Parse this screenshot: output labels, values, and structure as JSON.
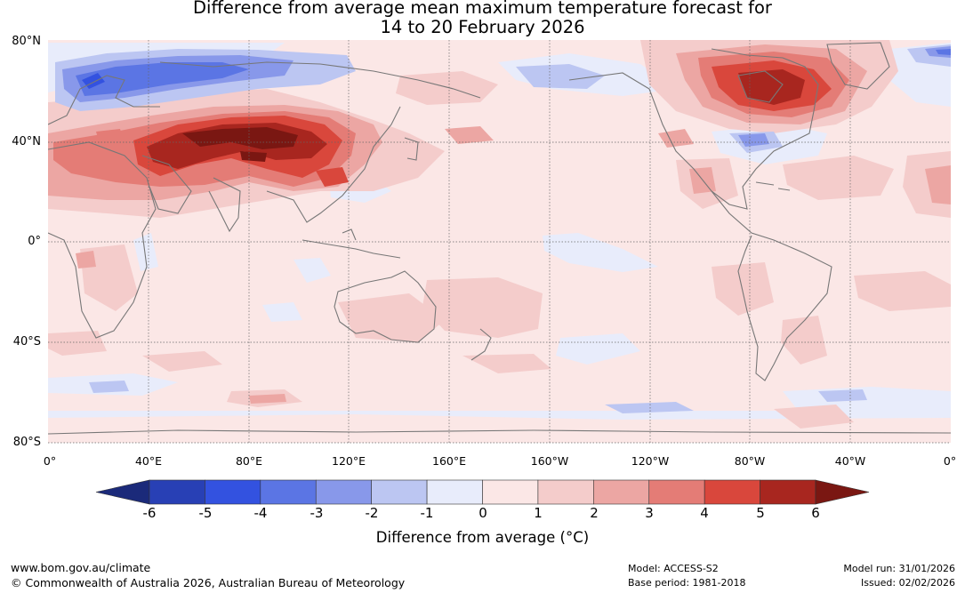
{
  "title": {
    "line1": "Difference from average mean maximum temperature forecast for",
    "line2": "14 to 20 February 2026"
  },
  "map": {
    "lat_labels": [
      "80°N",
      "40°N",
      "0°",
      "40°S",
      "80°S"
    ],
    "lon_labels": [
      "0°",
      "40°E",
      "80°E",
      "120°E",
      "160°E",
      "160°W",
      "120°W",
      "80°W",
      "40°W",
      "0°"
    ],
    "anomaly_regions": [
      {
        "region": "Central Asia / Tibetan Plateau",
        "anomaly_c": 6
      },
      {
        "region": "Middle East / Iran",
        "anomaly_c": 5
      },
      {
        "region": "Eastern Canada / Hudson Bay",
        "anomaly_c": 5
      },
      {
        "region": "Scandinavia / Western Russia",
        "anomaly_c": -4
      },
      {
        "region": "Eastern United States",
        "anomaly_c": -3
      },
      {
        "region": "Southern Ocean",
        "anomaly_c": -2
      }
    ]
  },
  "colorbar": {
    "ticks": [
      "-6",
      "-5",
      "-4",
      "-3",
      "-2",
      "-1",
      "0",
      "1",
      "2",
      "3",
      "4",
      "5",
      "6"
    ],
    "colors": [
      "#1b2a7a",
      "#2840b5",
      "#3352e0",
      "#5b75e4",
      "#8898ea",
      "#bcc6f2",
      "#e8ecfb",
      "#fbe7e6",
      "#f4cccb",
      "#eca6a3",
      "#e47c76",
      "#d9473c",
      "#a8261f",
      "#7a1712"
    ],
    "label": "Difference from average (°C)"
  },
  "footer": {
    "url": "www.bom.gov.au/climate",
    "copyright": "© Commonwealth of Australia 2026, Australian Bureau of Meteorology",
    "model": "Model: ACCESS-S2",
    "base_period": "Base period: 1981-2018",
    "model_run": "Model run: 31/01/2026",
    "issued": "Issued: 02/02/2026"
  }
}
